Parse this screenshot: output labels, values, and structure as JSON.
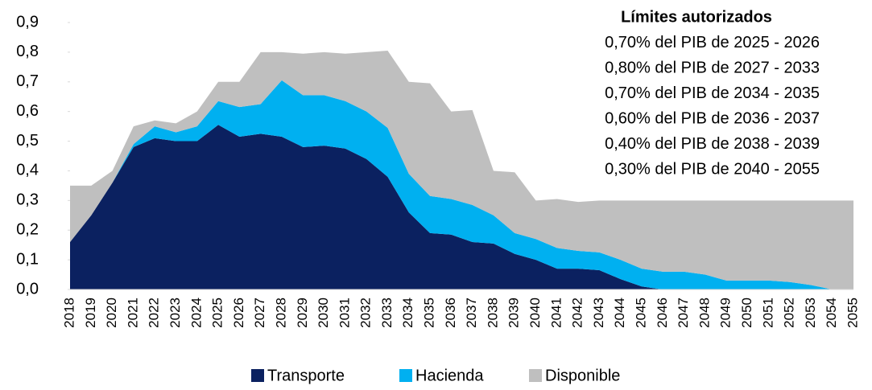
{
  "chart_data": {
    "type": "stacked_area",
    "annotations": [
      "Límites autorizados",
      "0,70% del PIB de 2025 - 2026",
      "0,80% del PIB de 2027 - 2033",
      "0,70% del PIB de 2034 - 2035",
      "0,60% del PIB de 2036 - 2037",
      "0,40% del PIB de 2038 - 2039",
      "0,30% del PIB de 2040 - 2055"
    ],
    "categories": [
      "2018",
      "2019",
      "2020",
      "2021",
      "2022",
      "2023",
      "2024",
      "2025",
      "2026",
      "2027",
      "2028",
      "2029",
      "2030",
      "2031",
      "2032",
      "2033",
      "2034",
      "2035",
      "2036",
      "2037",
      "2038",
      "2039",
      "2040",
      "2041",
      "2042",
      "2043",
      "2044",
      "2045",
      "2046",
      "2047",
      "2048",
      "2049",
      "2050",
      "2051",
      "2052",
      "2053",
      "2054",
      "2055"
    ],
    "series": [
      {
        "name": "Transporte",
        "color": "#0b2160",
        "values": [
          0.16,
          0.25,
          0.36,
          0.48,
          0.51,
          0.5,
          0.5,
          0.555,
          0.515,
          0.525,
          0.515,
          0.48,
          0.485,
          0.475,
          0.44,
          0.38,
          0.26,
          0.19,
          0.185,
          0.16,
          0.155,
          0.12,
          0.1,
          0.07,
          0.07,
          0.065,
          0.035,
          0.01,
          0,
          0,
          0,
          0,
          0,
          0,
          0,
          0,
          0,
          0
        ]
      },
      {
        "name": "Hacienda",
        "color": "#00b0f0",
        "values": [
          0,
          0,
          0,
          0.01,
          0.04,
          0.03,
          0.05,
          0.08,
          0.1,
          0.1,
          0.19,
          0.175,
          0.17,
          0.16,
          0.16,
          0.165,
          0.13,
          0.125,
          0.12,
          0.125,
          0.095,
          0.07,
          0.07,
          0.07,
          0.06,
          0.06,
          0.065,
          0.06,
          0.06,
          0.06,
          0.05,
          0.03,
          0.03,
          0.03,
          0.025,
          0.015,
          0,
          0
        ]
      },
      {
        "name": "Disponible",
        "color": "#bfbfbf",
        "values": [
          0.19,
          0.1,
          0.04,
          0.06,
          0.02,
          0.03,
          0.05,
          0.065,
          0.085,
          0.175,
          0.095,
          0.14,
          0.145,
          0.16,
          0.2,
          0.26,
          0.31,
          0.38,
          0.295,
          0.32,
          0.15,
          0.205,
          0.13,
          0.165,
          0.165,
          0.175,
          0.2,
          0.23,
          0.24,
          0.24,
          0.25,
          0.27,
          0.27,
          0.27,
          0.275,
          0.285,
          0.3,
          0.3
        ]
      }
    ],
    "ylim": [
      0,
      0.9
    ],
    "yticks": [
      {
        "value": 0,
        "label": "0,0"
      },
      {
        "value": 0.1,
        "label": "0,1"
      },
      {
        "value": 0.2,
        "label": "0,2"
      },
      {
        "value": 0.3,
        "label": "0,3"
      },
      {
        "value": 0.4,
        "label": "0,4"
      },
      {
        "value": 0.5,
        "label": "0,5"
      },
      {
        "value": 0.6,
        "label": "0,6"
      },
      {
        "value": 0.7,
        "label": "0,7"
      },
      {
        "value": 0.8,
        "label": "0,8"
      },
      {
        "value": 0.9,
        "label": "0,9"
      }
    ],
    "legend": "bottom"
  }
}
